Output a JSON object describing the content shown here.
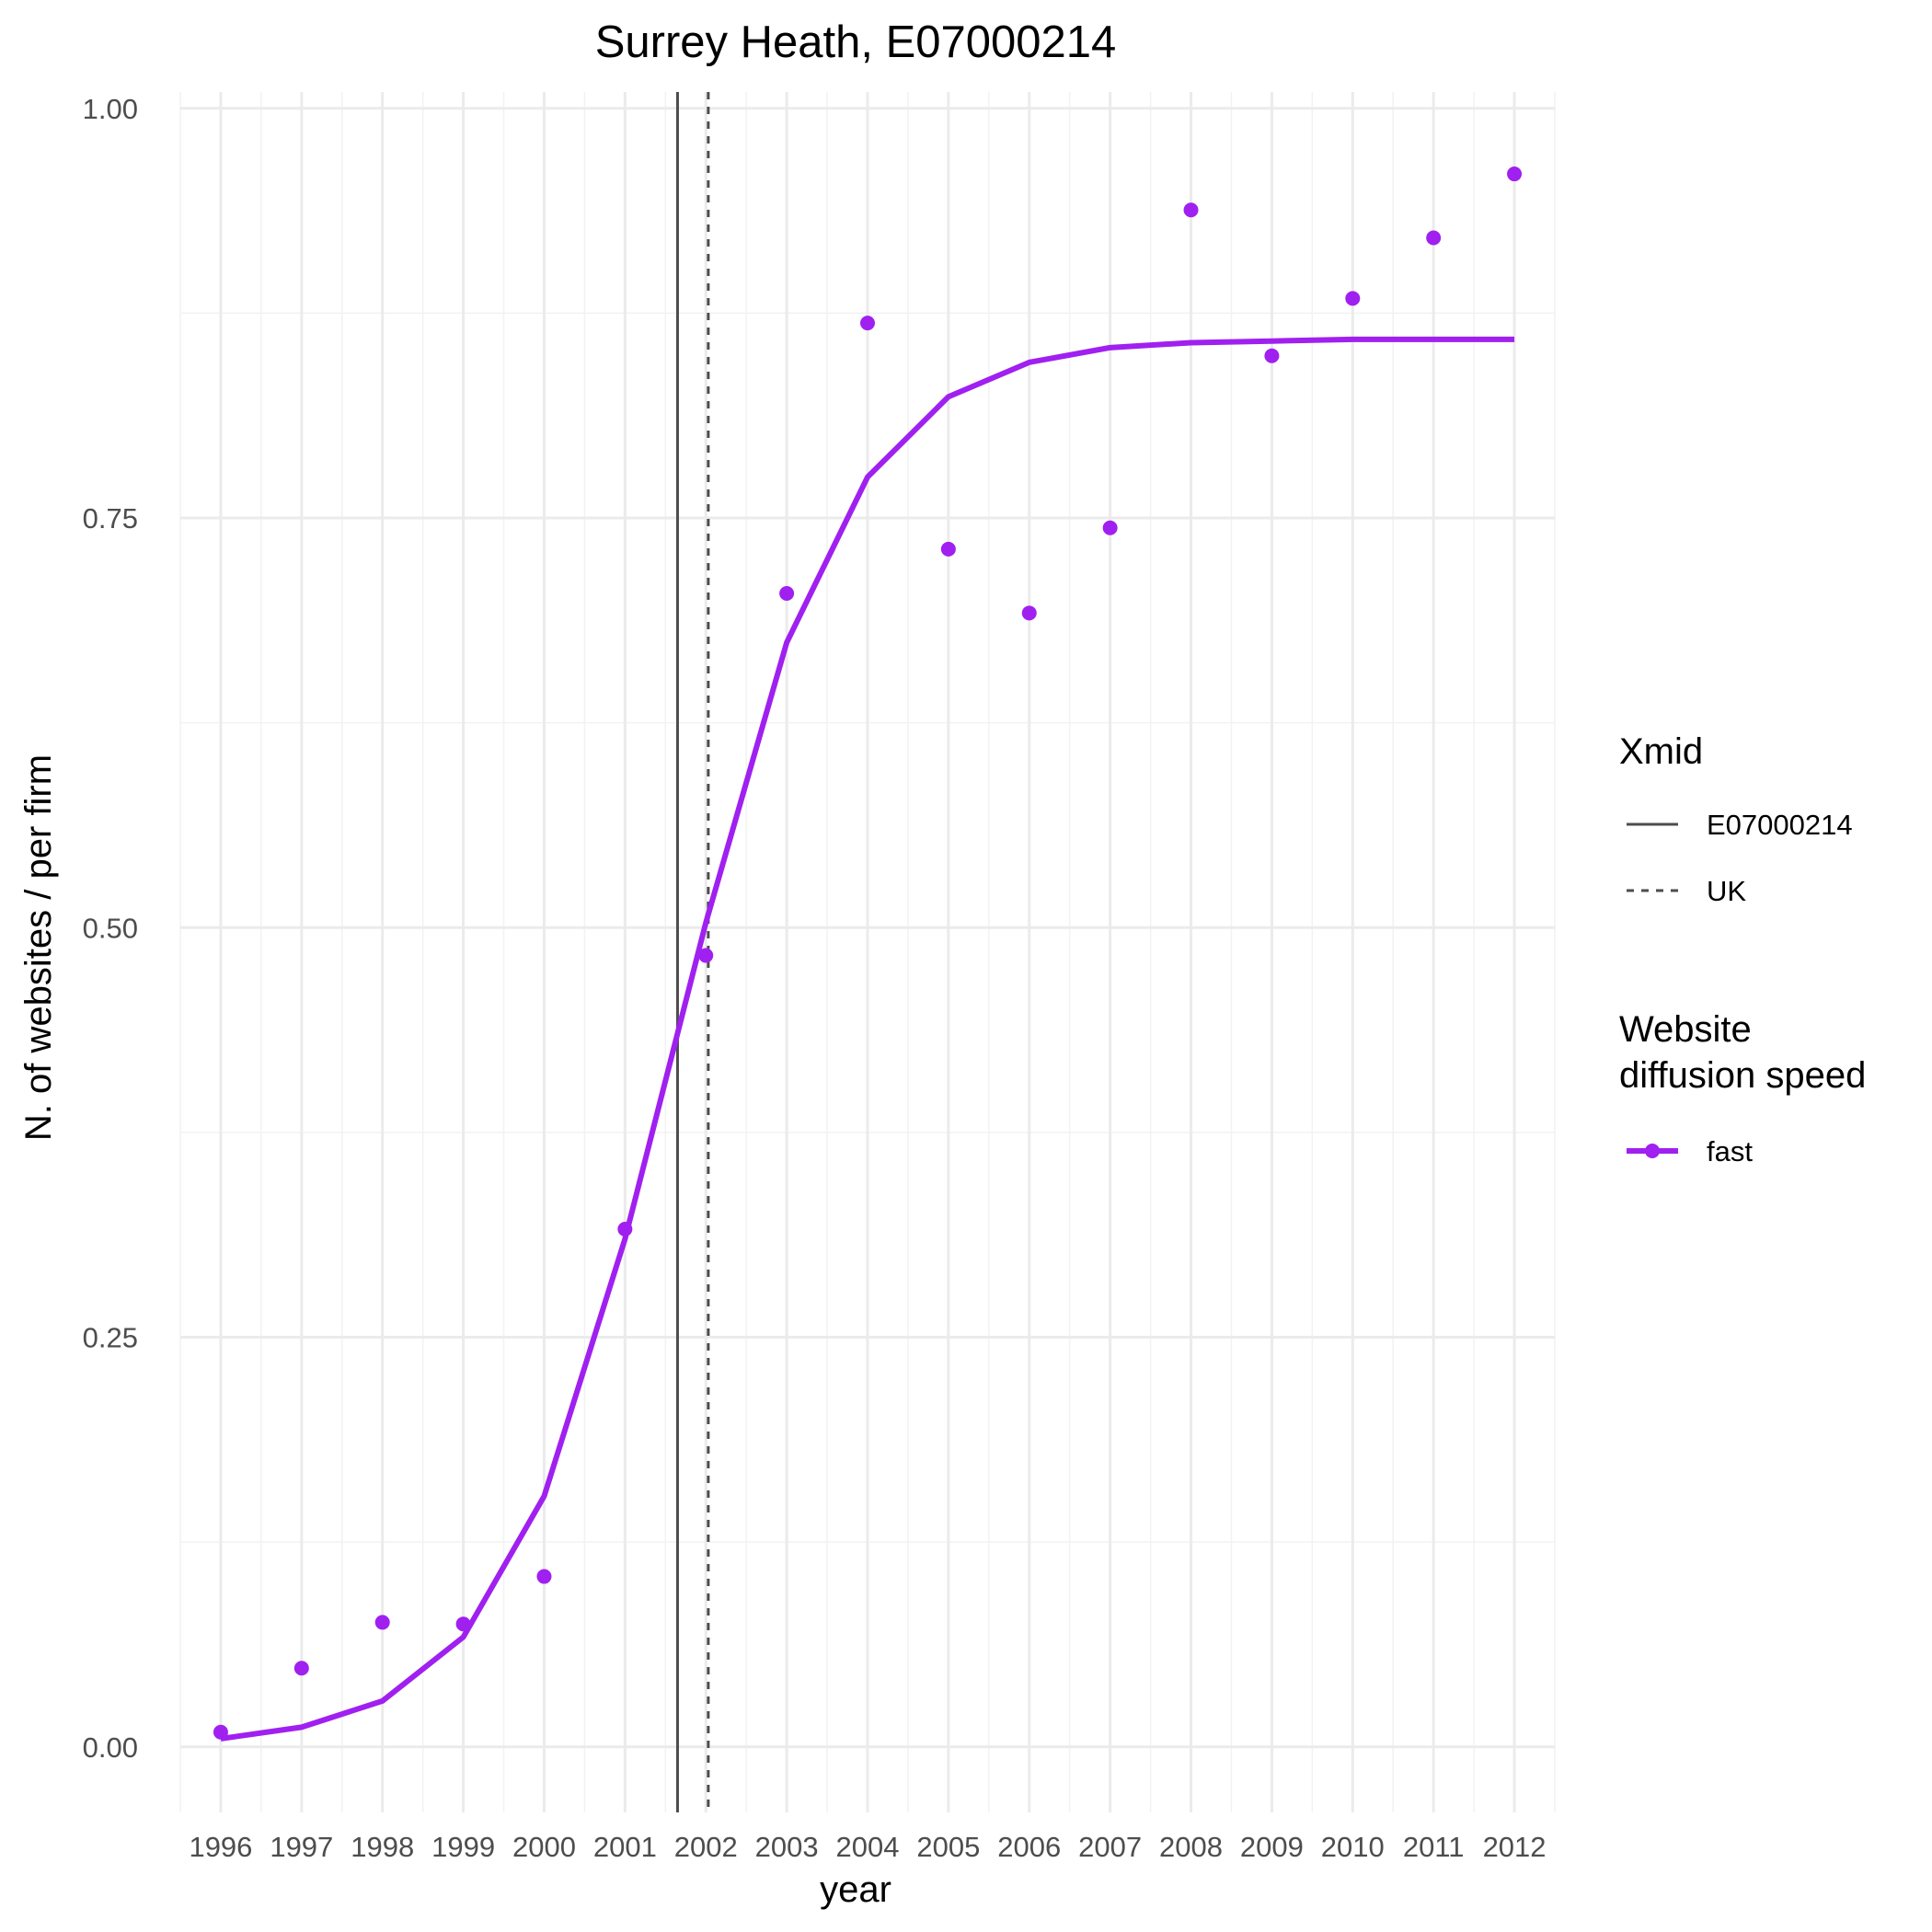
{
  "chart_data": {
    "type": "line",
    "title": "Surrey Heath, E07000214",
    "xlabel": "year",
    "ylabel": "N. of websites / per firm",
    "x": [
      1996,
      1997,
      1998,
      1999,
      2000,
      2001,
      2002,
      2003,
      2004,
      2005,
      2006,
      2007,
      2008,
      2009,
      2010,
      2011,
      2012
    ],
    "xlim": [
      1995.5,
      2012.5
    ],
    "ylim": [
      -0.04,
      1.01
    ],
    "yticks": [
      0.0,
      0.25,
      0.5,
      0.75,
      1.0
    ],
    "ytick_labels": [
      "0.00",
      "0.25",
      "0.50",
      "0.75",
      "1.00"
    ],
    "grid": true,
    "series": [
      {
        "name": "fast",
        "kind": "points",
        "color": "#a020f0",
        "values": [
          0.009,
          0.048,
          0.076,
          0.075,
          0.104,
          0.316,
          0.483,
          0.704,
          0.869,
          0.731,
          0.692,
          0.744,
          0.938,
          0.849,
          0.884,
          0.921,
          0.96
        ]
      },
      {
        "name": "fast",
        "kind": "fitted-line",
        "color": "#a020f0",
        "values": [
          0.005,
          0.012,
          0.028,
          0.067,
          0.153,
          0.31,
          0.503,
          0.674,
          0.775,
          0.824,
          0.845,
          0.854,
          0.857,
          0.858,
          0.859,
          0.859,
          0.859
        ]
      }
    ],
    "reference_lines": [
      {
        "label": "E07000214",
        "x": 2001.65,
        "style": "solid",
        "color": "#4d4d4d"
      },
      {
        "label": "UK",
        "x": 2002.03,
        "style": "dashed",
        "color": "#4d4d4d"
      }
    ],
    "legend": {
      "placement": "right",
      "groups": [
        {
          "title": "Xmid",
          "entries": [
            "E07000214",
            "UK"
          ]
        },
        {
          "title_lines": [
            "Website",
            "diffusion speed"
          ],
          "entries": [
            "fast"
          ]
        }
      ]
    }
  }
}
